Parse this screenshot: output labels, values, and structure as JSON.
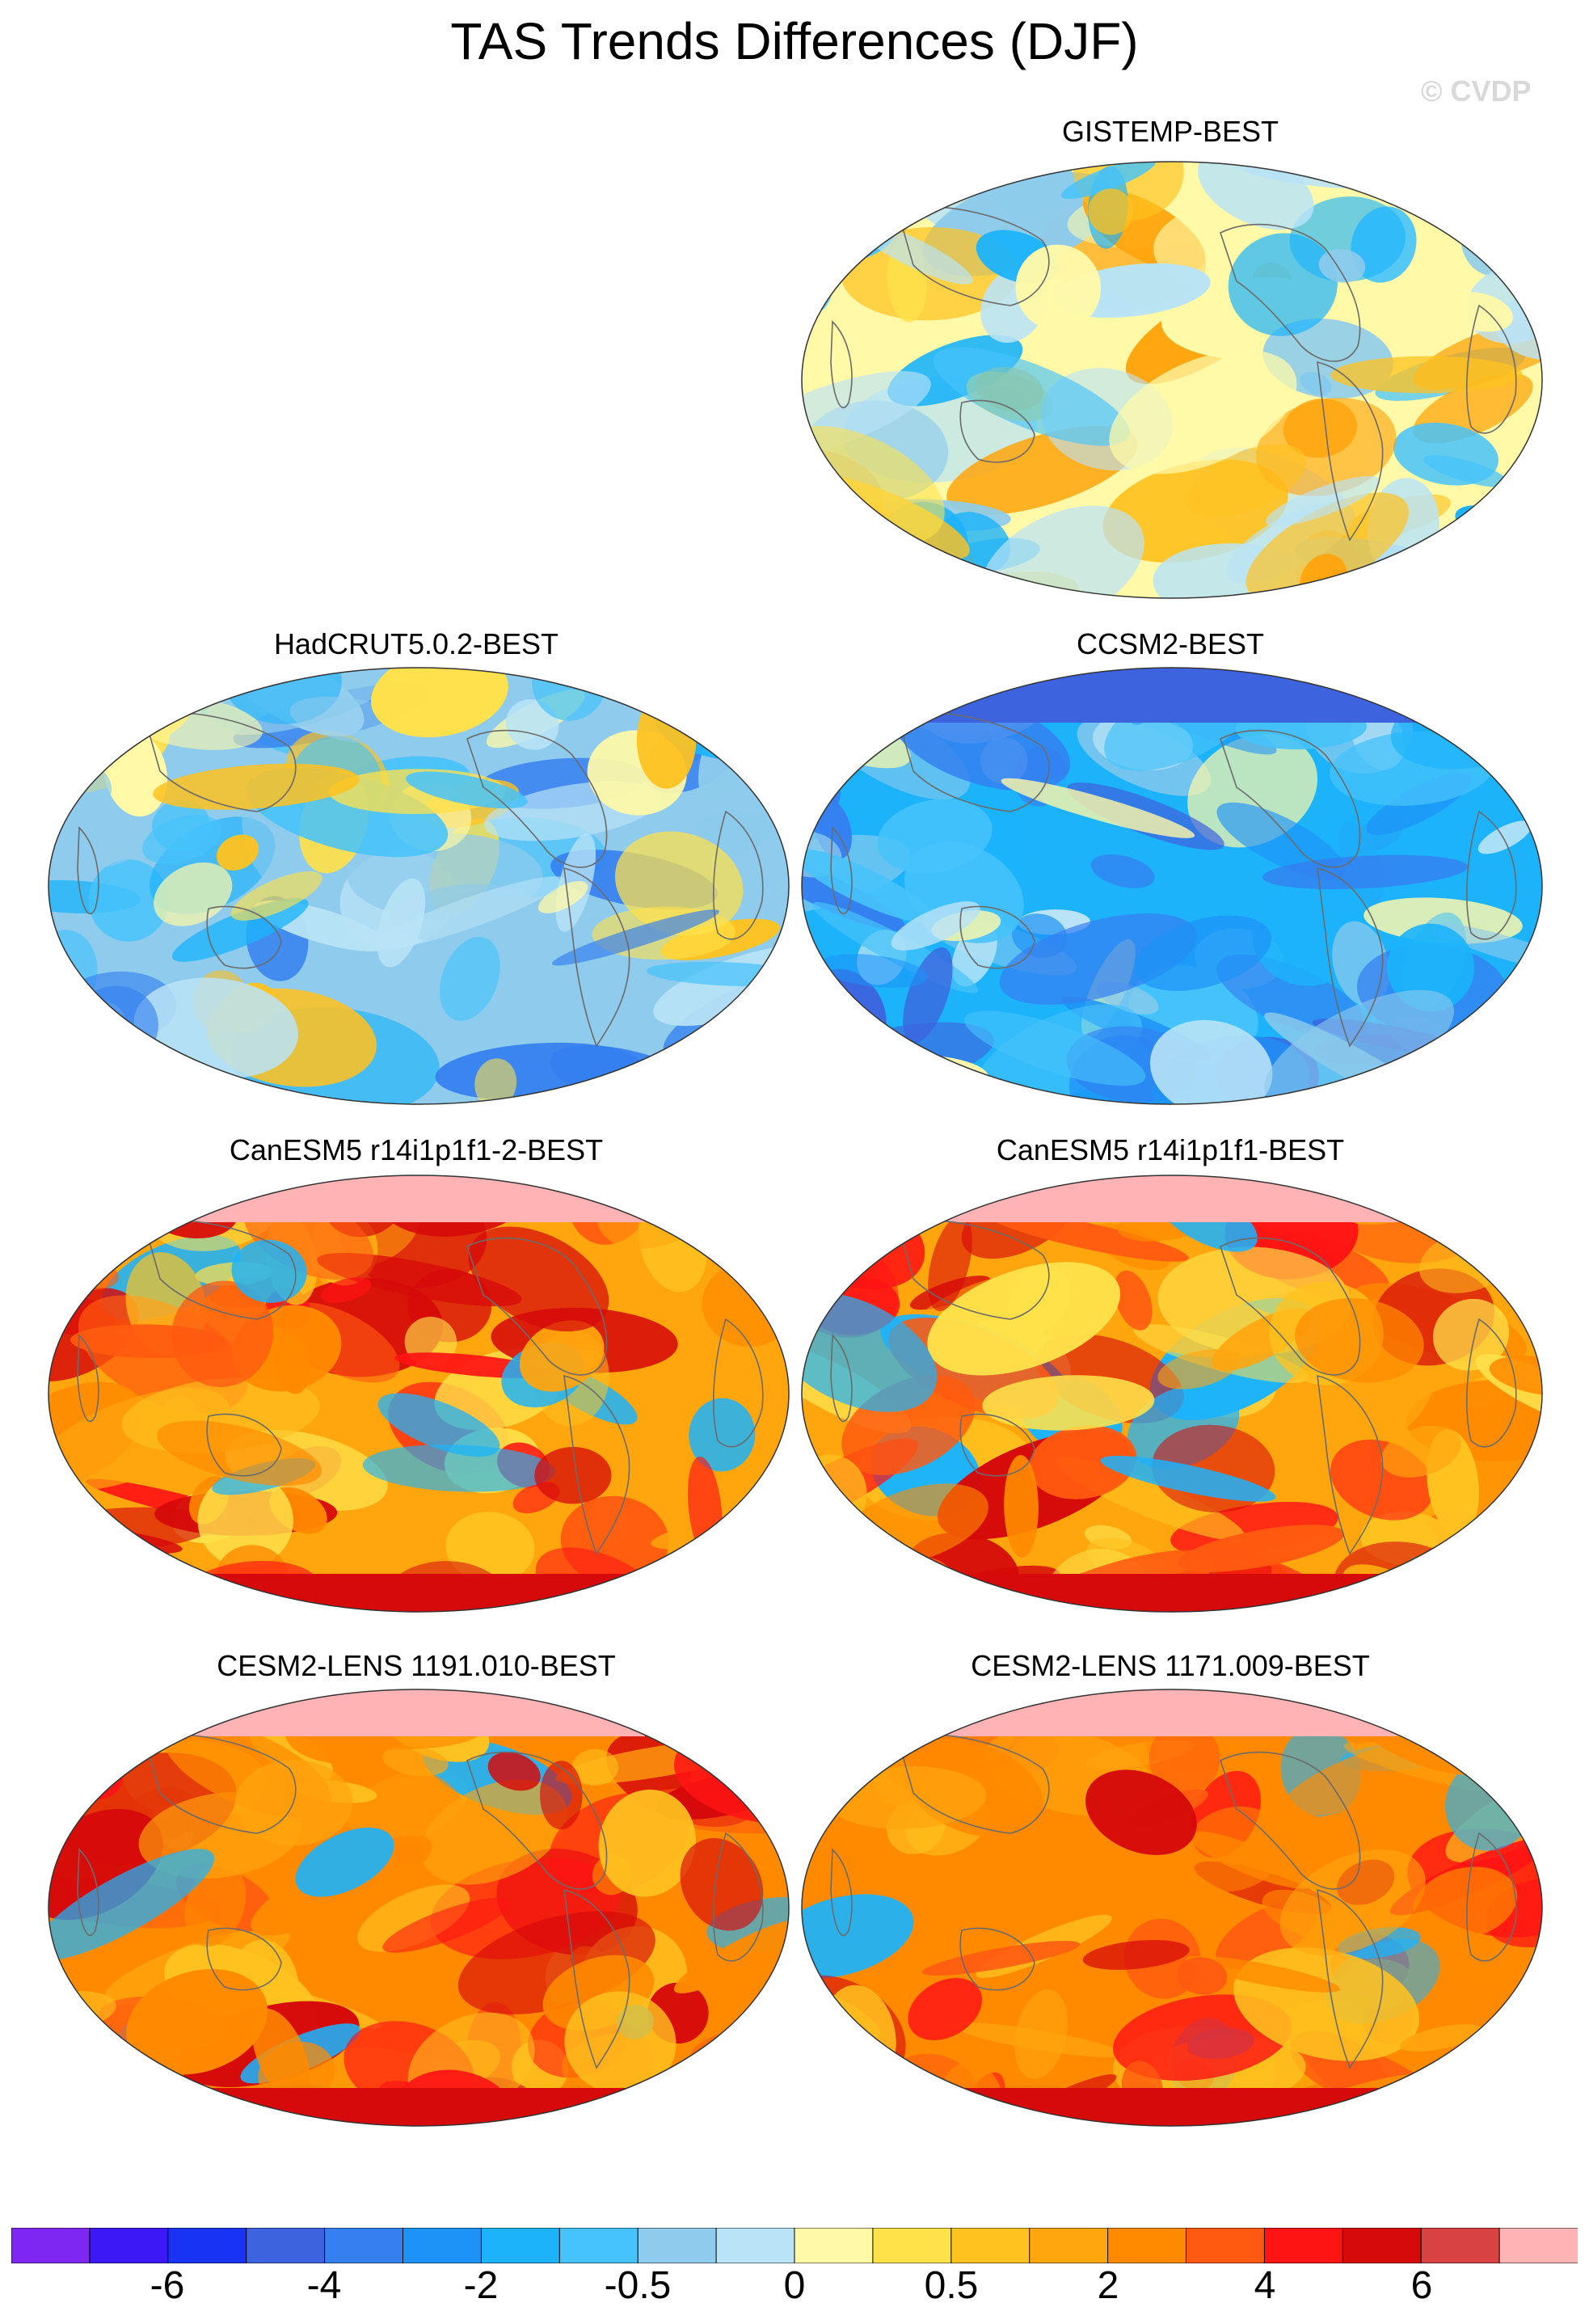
{
  "title": "TAS Trends Differences (DJF)",
  "copyright": "© CVDP",
  "panels": [
    {
      "title": "GISTEMP-BEST",
      "style": "mixed"
    },
    {
      "title": "HadCRUT5.0.2-BEST",
      "style": "cool"
    },
    {
      "title": "CCSM2-BEST",
      "style": "cold"
    },
    {
      "title": "CanESM5 r14i1p1f1-2-BEST",
      "style": "warm"
    },
    {
      "title": "CanESM5 r14i1p1f1-BEST",
      "style": "warm"
    },
    {
      "title": "CESM2-LENS 1191.010-BEST",
      "style": "warm2"
    },
    {
      "title": "CESM2-LENS 1171.009-BEST",
      "style": "warm2"
    }
  ],
  "colorbar": {
    "colors": [
      "#7f27f2",
      "#3b18f5",
      "#1933f5",
      "#3e63de",
      "#357ff0",
      "#1d93f7",
      "#1cb3fb",
      "#46c3fa",
      "#8ecbec",
      "#b9e3f6",
      "#fff9a8",
      "#ffe14a",
      "#ffc21f",
      "#ffa50e",
      "#ff8a00",
      "#ff5a10",
      "#ff1414",
      "#d60a0a",
      "#d94242",
      "#ffb3b5"
    ],
    "labels": [
      "-6",
      "-4",
      "-2",
      "-0.5",
      "0",
      "0.5",
      "2",
      "4",
      "6"
    ]
  }
}
